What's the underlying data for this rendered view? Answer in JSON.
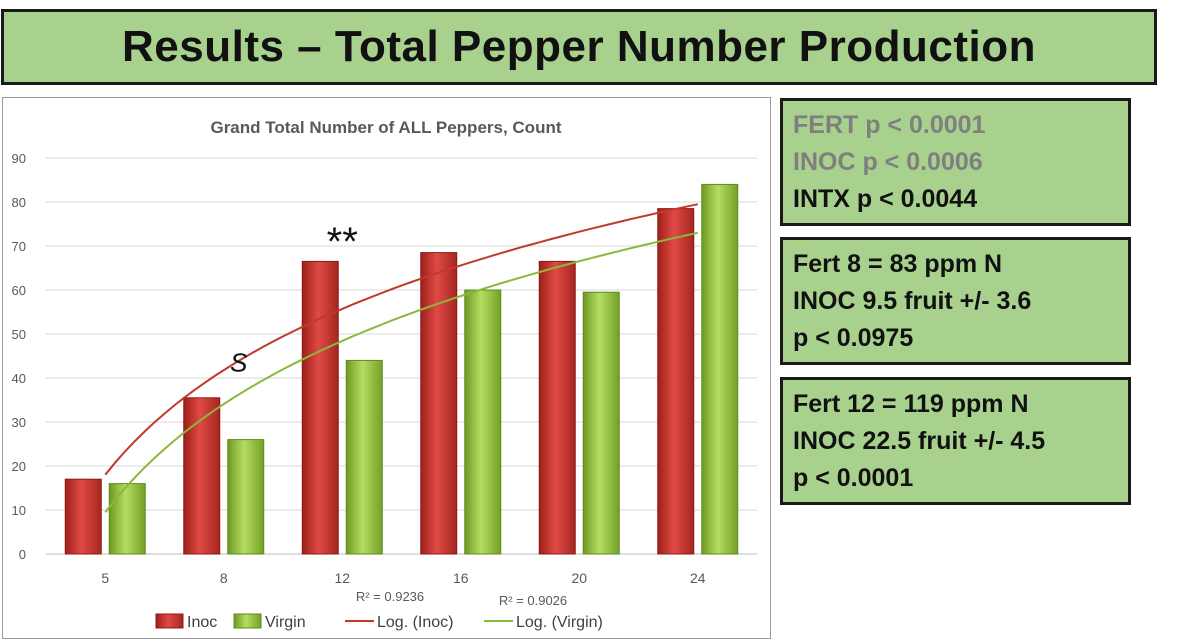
{
  "slide": {
    "title": "Results – Total Pepper Number Production"
  },
  "stats": [
    {
      "lines": [
        {
          "text": "FERT p < 0.0001",
          "color": "#7f7f7f"
        },
        {
          "text": "INOC p < 0.0006",
          "color": "#7f7f7f"
        },
        {
          "text": "INTX p < 0.0044",
          "color": "#111111"
        }
      ]
    },
    {
      "lines": [
        {
          "text": "Fert 8 = 83 ppm N",
          "color": "#111111"
        },
        {
          "text": "INOC  9.5 fruit +/- 3.6",
          "color": "#111111"
        },
        {
          "text": "p < 0.0975",
          "color": "#111111"
        }
      ]
    },
    {
      "lines": [
        {
          "text": "Fert 12 = 119 ppm N",
          "color": "#111111"
        },
        {
          "text": "INOC  22.5 fruit +/- 4.5",
          "color": "#111111"
        },
        {
          "text": "p < 0.0001",
          "color": "#111111"
        }
      ]
    }
  ],
  "chart_data": {
    "type": "bar",
    "title": "Grand Total Number of ALL Peppers, Count",
    "categories": [
      "5",
      "8",
      "12",
      "16",
      "20",
      "24"
    ],
    "ylim": [
      0,
      90
    ],
    "yticks": [
      "0",
      "10",
      "20",
      "30",
      "40",
      "50",
      "60",
      "70",
      "80",
      "90"
    ],
    "grid": true,
    "legend_position": "bottom",
    "series": [
      {
        "name": "Inoc",
        "values": [
          17,
          35.5,
          66.5,
          68.5,
          66.5,
          78.5
        ],
        "color": "#c0392b"
      },
      {
        "name": "Virgin",
        "values": [
          16,
          26,
          44,
          60,
          59.5,
          84
        ],
        "color": "#8ab83a"
      }
    ],
    "trendlines": [
      {
        "name": "Log. (Inoc)",
        "r2_label": "R² = 0.9236",
        "color": "#c0392b",
        "start": 18,
        "end": 79.5
      },
      {
        "name": "Log. (Virgin)",
        "r2_label": "R² = 0.9026",
        "color": "#8ab83a",
        "start": 9.5,
        "end": 73
      }
    ],
    "annotations": [
      {
        "text": "S",
        "category": "8",
        "y": 41.5
      },
      {
        "text": "**",
        "category": "12",
        "y": 72
      }
    ]
  }
}
